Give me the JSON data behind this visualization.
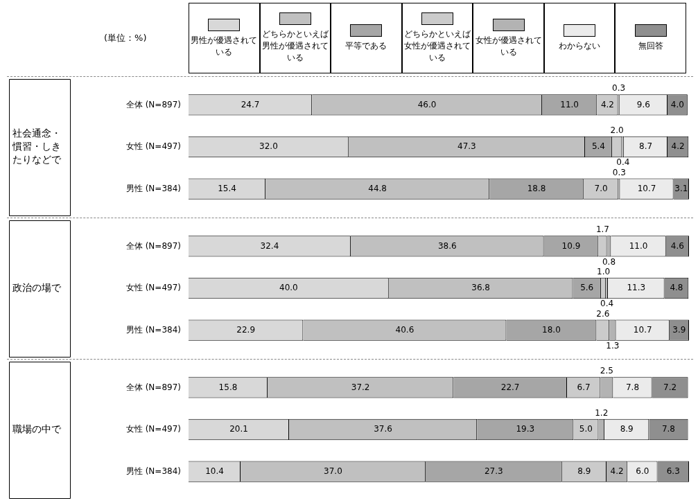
{
  "chart_data": [
    {
      "type": "bar",
      "orientation": "horizontal",
      "stacked": true,
      "legend": "top",
      "grid": false,
      "ylabel": "社会通念・慣習・しきたりなどで",
      "annotations": [
        "(単位：%)"
      ],
      "categories": [
        "全体 (N=897)",
        "女性 (N=497)",
        "男性 (N=384)"
      ],
      "series": [
        {
          "name": "男性が優遇されている",
          "color": "#d8d8d8",
          "values": [
            24.7,
            32.0,
            15.4
          ],
          "value_labels": [
            "24.7",
            "32.0",
            "15.4"
          ]
        },
        {
          "name": "どちらかといえば男性が優遇されている",
          "color": "#c0c0c0",
          "values": [
            46.0,
            47.3,
            44.8
          ],
          "value_labels": [
            "46.0",
            "47.3",
            "44.8"
          ]
        },
        {
          "name": "平等である",
          "color": "#a6a6a6",
          "values": [
            11.0,
            5.4,
            18.8
          ],
          "value_labels": [
            "11.0",
            "5.4",
            "18.8"
          ]
        },
        {
          "name": "どちらかといえば女性が優遇されている",
          "color": "#cbcbcb",
          "values": [
            4.2,
            2.0,
            7.0
          ],
          "value_labels": [
            "4.2",
            "2.0",
            "7.0"
          ]
        },
        {
          "name": "女性が優遇されている",
          "color": "#b3b3b3",
          "values": [
            0.3,
            0.4,
            0.3
          ],
          "value_labels": [
            "0.3",
            "0.4",
            "0.3"
          ]
        },
        {
          "name": "わからない",
          "color": "#ebebeb",
          "values": [
            9.6,
            8.7,
            10.7
          ],
          "value_labels": [
            "9.6",
            "8.7",
            "10.7"
          ]
        },
        {
          "name": "無回答",
          "color": "#8f8f8f",
          "values": [
            4.0,
            4.2,
            3.1
          ],
          "value_labels": [
            "4.0",
            "4.2",
            "3.1"
          ]
        }
      ]
    },
    {
      "type": "bar",
      "orientation": "horizontal",
      "stacked": true,
      "grid": false,
      "ylabel": "政治の場で",
      "categories": [
        "全体 (N=897)",
        "女性 (N=497)",
        "男性 (N=384)"
      ],
      "series": [
        {
          "color": "#d8d8d8",
          "values": [
            32.4,
            40.0,
            22.9
          ],
          "value_labels": [
            "32.4",
            "40.0",
            "22.9"
          ]
        },
        {
          "color": "#c0c0c0",
          "values": [
            38.6,
            36.8,
            40.6
          ],
          "value_labels": [
            "38.6",
            "36.8",
            "40.6"
          ]
        },
        {
          "color": "#a6a6a6",
          "values": [
            10.9,
            5.6,
            18.0
          ],
          "value_labels": [
            "10.9",
            "5.6",
            "18.0"
          ]
        },
        {
          "color": "#cbcbcb",
          "values": [
            1.7,
            1.0,
            2.6
          ],
          "value_labels": [
            "1.7",
            "1.0",
            "2.6"
          ]
        },
        {
          "color": "#b3b3b3",
          "values": [
            0.8,
            0.4,
            1.3
          ],
          "value_labels": [
            "0.8",
            "0.4",
            "1.3"
          ]
        },
        {
          "color": "#ebebeb",
          "values": [
            11.0,
            11.3,
            10.7
          ],
          "value_labels": [
            "11.0",
            "11.3",
            "10.7"
          ]
        },
        {
          "color": "#8f8f8f",
          "values": [
            4.6,
            4.8,
            3.9
          ],
          "value_labels": [
            "4.6",
            "4.8",
            "3.9"
          ]
        }
      ]
    },
    {
      "type": "bar",
      "orientation": "horizontal",
      "stacked": true,
      "grid": false,
      "ylabel": "職場の中で",
      "categories": [
        "全体 (N=897)",
        "女性 (N=497)",
        "男性 (N=384)"
      ],
      "series": [
        {
          "color": "#d8d8d8",
          "values": [
            15.8,
            20.1,
            10.4
          ],
          "value_labels": [
            "15.8",
            "20.1",
            "10.4"
          ]
        },
        {
          "color": "#c0c0c0",
          "values": [
            37.2,
            37.6,
            37.0
          ],
          "value_labels": [
            "37.2",
            "37.6",
            "37.0"
          ]
        },
        {
          "color": "#a6a6a6",
          "values": [
            22.7,
            19.3,
            27.3
          ],
          "value_labels": [
            "22.7",
            "19.3",
            "27.3"
          ]
        },
        {
          "color": "#cbcbcb",
          "values": [
            6.7,
            5.0,
            8.9
          ],
          "value_labels": [
            "6.7",
            "5.0",
            "8.9"
          ]
        },
        {
          "color": "#b3b3b3",
          "values": [
            2.5,
            1.2,
            4.2
          ],
          "value_labels": [
            "2.5",
            "1.2",
            "4.2"
          ]
        },
        {
          "color": "#ebebeb",
          "values": [
            7.8,
            8.9,
            6.0
          ],
          "value_labels": [
            "7.8",
            "8.9",
            "6.0"
          ]
        },
        {
          "color": "#8f8f8f",
          "values": [
            7.2,
            7.8,
            6.3
          ],
          "value_labels": [
            "7.2",
            "7.8",
            "6.3"
          ]
        }
      ]
    }
  ]
}
